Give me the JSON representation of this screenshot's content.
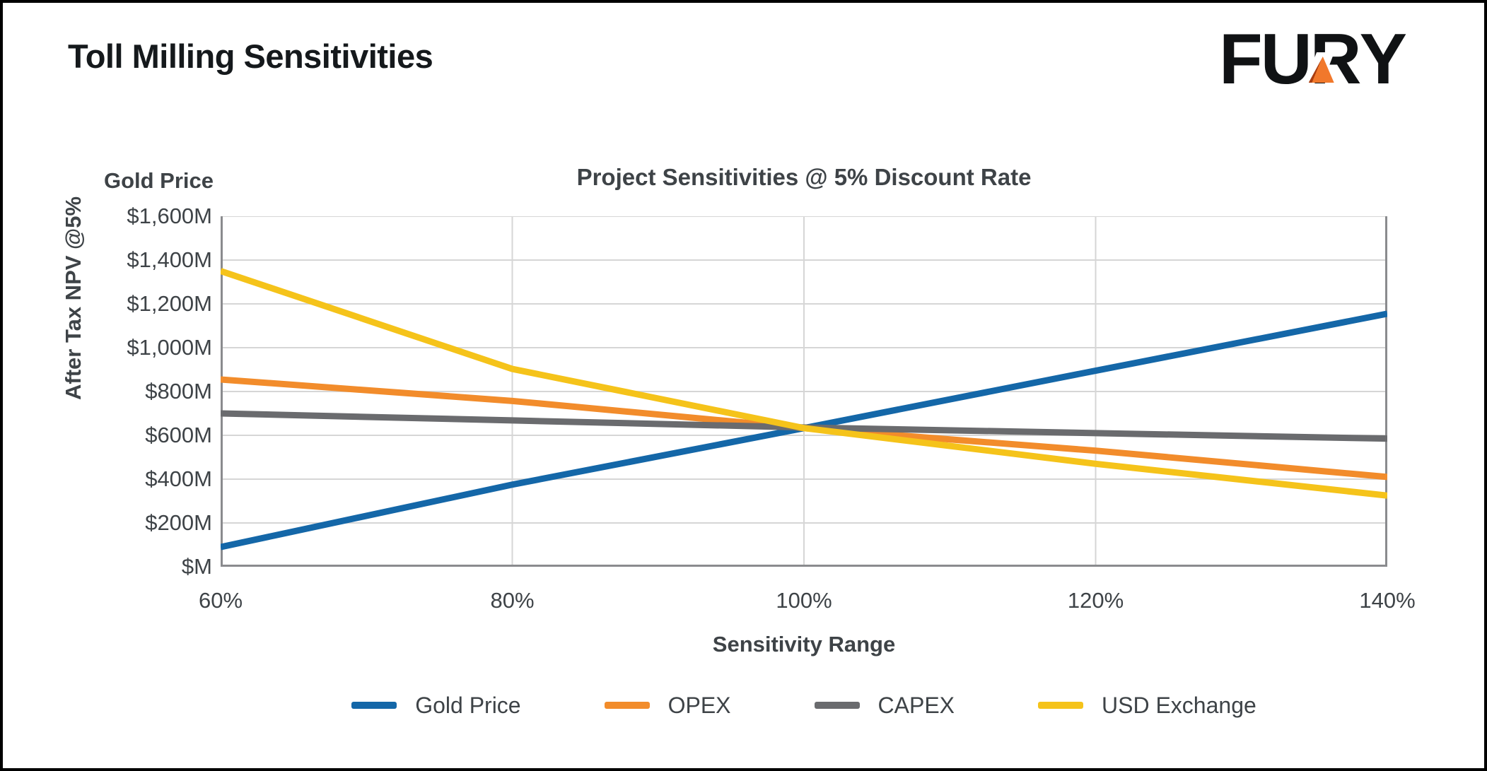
{
  "page": {
    "title": "Toll Milling Sensitivities"
  },
  "logo": {
    "letters": [
      "F",
      "U",
      "R",
      "Y"
    ],
    "accent_color": "#F1782B",
    "text_color": "#101214"
  },
  "chart_data": {
    "type": "line",
    "title": "Project Sensitivities @ 5% Discount Rate",
    "xlabel": "Sensitivity Range",
    "ylabel": "After Tax NPV @5%",
    "axis_note": "Gold Price",
    "x": [
      60,
      80,
      100,
      120,
      140
    ],
    "x_tick_labels": [
      "60%",
      "80%",
      "100%",
      "120%",
      "140%"
    ],
    "xlim": [
      60,
      140
    ],
    "y_ticks": [
      0,
      200,
      400,
      600,
      800,
      1000,
      1200,
      1400,
      1600
    ],
    "y_tick_labels": [
      "$M",
      "$200M",
      "$400M",
      "$600M",
      "$800M",
      "$1,000M",
      "$1,200M",
      "$1,400M",
      "$1,600M"
    ],
    "ylim": [
      0,
      1600
    ],
    "grid": true,
    "legend_position": "bottom",
    "colors": {
      "grid": "#d6d6d6",
      "frame": "#8a8b8e",
      "text": "#3e4347"
    },
    "series": [
      {
        "name": "Gold Price",
        "color": "#1467A8",
        "values": [
          90,
          375,
          633,
          895,
          1155
        ]
      },
      {
        "name": "OPEX",
        "color": "#F28C2B",
        "values": [
          855,
          757,
          633,
          530,
          410
        ]
      },
      {
        "name": "CAPEX",
        "color": "#6A6B6E",
        "values": [
          700,
          668,
          636,
          610,
          585
        ]
      },
      {
        "name": "USD Exchange",
        "color": "#F5C31A",
        "values": [
          1350,
          903,
          633,
          470,
          325
        ]
      }
    ]
  }
}
